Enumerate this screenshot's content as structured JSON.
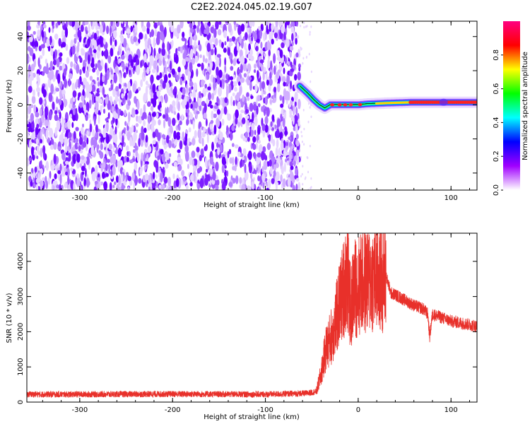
{
  "title": "C2E2.2024.045.02.19.G07",
  "chart_data": [
    {
      "type": "heatmap",
      "xlabel": "Height of straight line (km)",
      "ylabel": "Frequency (Hz)",
      "xlim": [
        -357,
        128
      ],
      "ylim": [
        -50,
        49
      ],
      "xticks": [
        -300,
        -200,
        -100,
        0,
        100
      ],
      "yticks": [
        -40,
        -20,
        0,
        20,
        40
      ],
      "noise_region_x": [
        -357,
        -63
      ],
      "ridge": {
        "x": [
          -63,
          -55,
          -48,
          -42,
          -36,
          -30,
          -20,
          -10,
          0,
          10,
          30,
          60,
          90,
          128
        ],
        "y": [
          11,
          7,
          3,
          0,
          -2,
          0,
          0,
          0,
          0,
          0.5,
          1,
          1.5,
          1.5,
          1.5
        ]
      },
      "colorbar": {
        "label": "Normalized spectral amplitude",
        "range": [
          0,
          1
        ],
        "ticks": [
          0.0,
          0.2,
          0.4,
          0.6,
          0.8
        ],
        "tick_labels": [
          "0.0",
          "0.2",
          "0.4",
          "0.6",
          "0.8"
        ],
        "colors": [
          "#ffffff",
          "#a000ff",
          "#0000ff",
          "#00ffff",
          "#00ff00",
          "#ffff00",
          "#ff0000",
          "#ff0080"
        ]
      }
    },
    {
      "type": "line",
      "xlabel": "Height of straight line (km)",
      "ylabel": "SNR (10 * v/v)",
      "xlim": [
        -357,
        128
      ],
      "ylim": [
        0,
        4800
      ],
      "xticks": [
        -300,
        -200,
        -100,
        0,
        100
      ],
      "yticks": [
        0,
        1000,
        2000,
        3000,
        4000
      ],
      "color": "#e8302a",
      "series": [
        {
          "x": [
            -357,
            -300,
            -200,
            -100,
            -55,
            -45,
            -40,
            -35,
            -30,
            -25,
            -20,
            -15,
            -12,
            -8,
            -5,
            0,
            5,
            10,
            15,
            20,
            25,
            30,
            35,
            40,
            50,
            60,
            70,
            75,
            77,
            80,
            90,
            100,
            110,
            120,
            128
          ],
          "y": [
            220,
            220,
            230,
            220,
            250,
            300,
            800,
            1500,
            1800,
            2200,
            2800,
            3300,
            3700,
            2600,
            3200,
            3300,
            3400,
            3450,
            3500,
            3500,
            3550,
            3600,
            3100,
            3050,
            2900,
            2750,
            2650,
            2500,
            1850,
            2500,
            2400,
            2300,
            2250,
            2200,
            2150
          ]
        }
      ]
    }
  ]
}
